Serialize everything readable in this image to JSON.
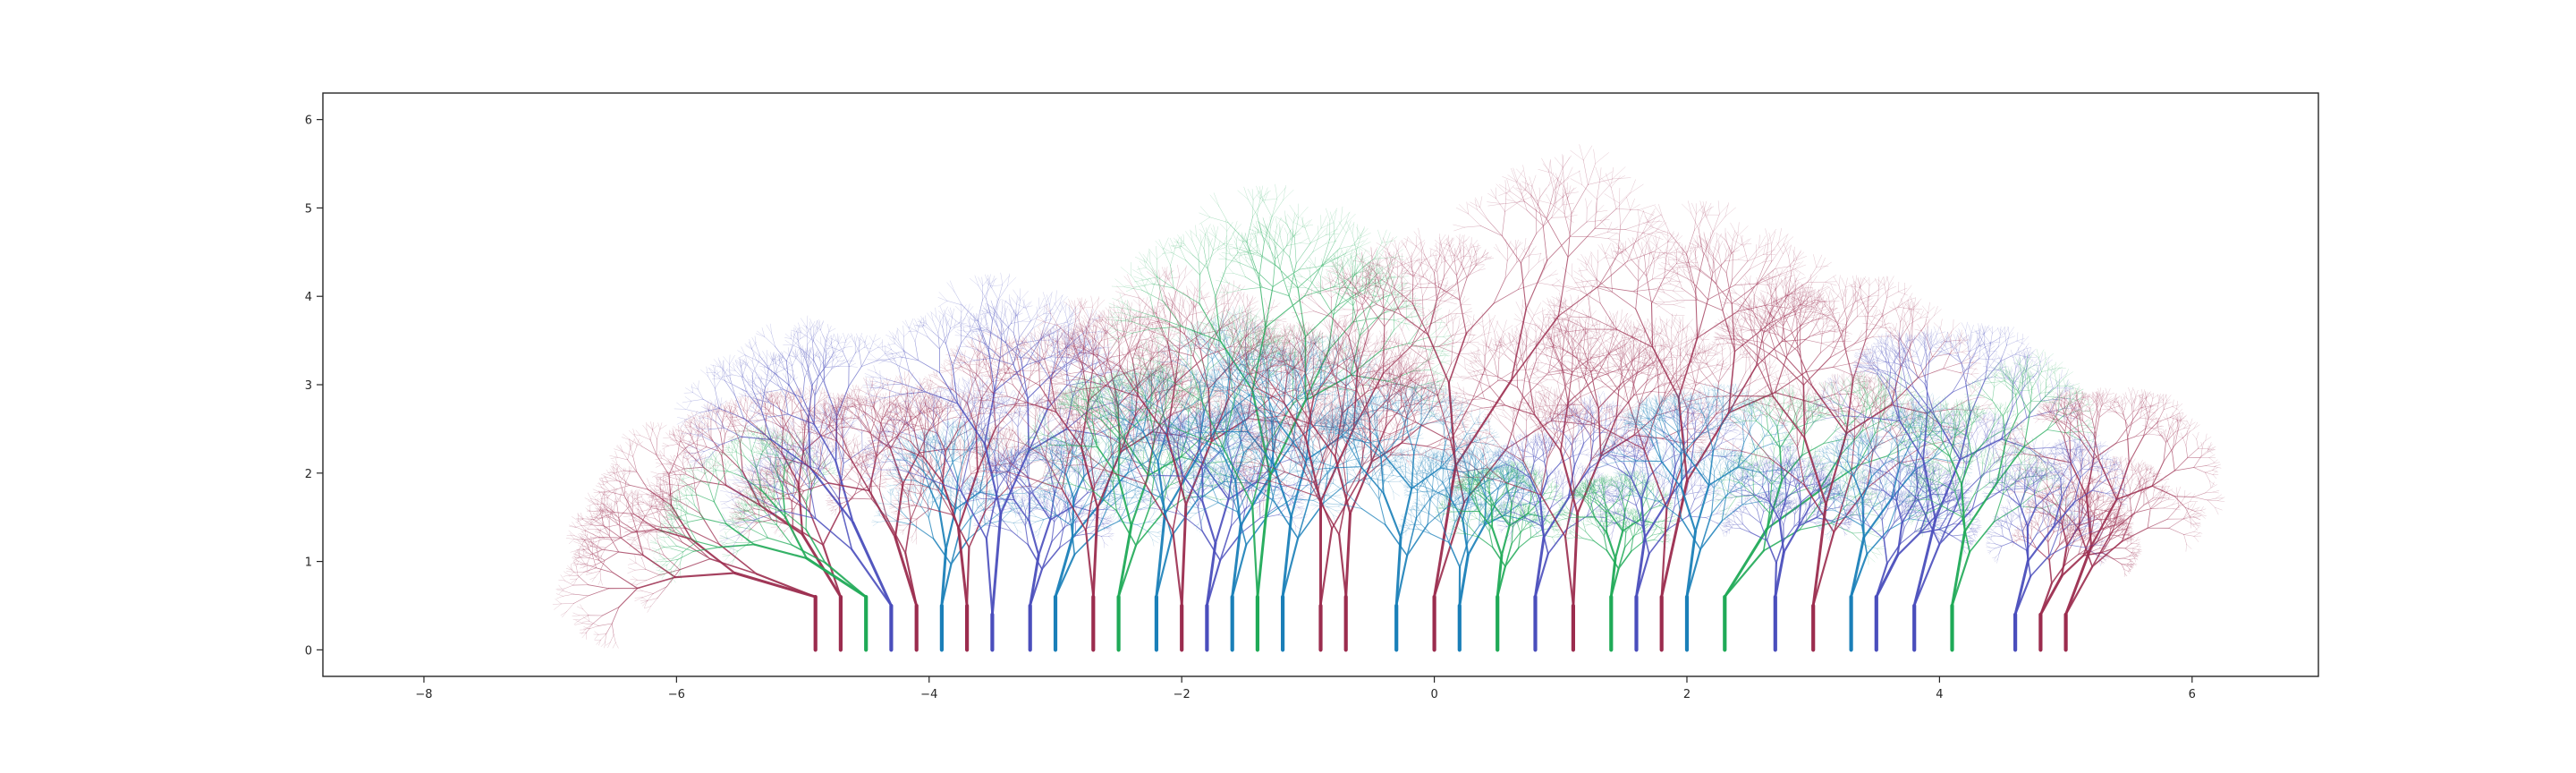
{
  "chart_data": {
    "type": "tree-plot",
    "title": "",
    "xlabel": "",
    "ylabel": "",
    "xlim": [
      -8.8,
      7.0
    ],
    "ylim": [
      -0.3,
      6.3
    ],
    "grid": false,
    "legend": "none",
    "xticks": [
      -8,
      -6,
      -4,
      -2,
      0,
      2,
      4,
      6
    ],
    "xtick_labels": [
      "−8",
      "−6",
      "−4",
      "−2",
      "0",
      "2",
      "4",
      "6"
    ],
    "yticks": [
      0,
      1,
      2,
      3,
      4,
      5,
      6
    ],
    "ytick_labels": [
      "0",
      "1",
      "2",
      "3",
      "4",
      "5",
      "6"
    ],
    "palette": {
      "crimson": "#9b2c4e",
      "green": "#1faa57",
      "indigo": "#4a4ebc",
      "teal": "#1a7fb8"
    },
    "trees": [
      {
        "x": -4.9,
        "color": "crimson",
        "trunk": 0.6,
        "crown_x": -6.8,
        "crown_y": 1.4,
        "spread": 1.6,
        "height": 2.4
      },
      {
        "x": -4.7,
        "color": "crimson",
        "trunk": 0.6,
        "crown_x": -5.6,
        "crown_y": 2.7,
        "spread": 1.4,
        "height": 2.6
      },
      {
        "x": -4.5,
        "color": "green",
        "trunk": 0.6,
        "crown_x": -5.9,
        "crown_y": 1.9,
        "spread": 1.0,
        "height": 1.5
      },
      {
        "x": -4.3,
        "color": "indigo",
        "trunk": 0.5,
        "crown_x": -5.2,
        "crown_y": 3.3,
        "spread": 1.2,
        "height": 1.8
      },
      {
        "x": -4.1,
        "color": "crimson",
        "trunk": 0.5,
        "crown_x": -4.6,
        "crown_y": 2.8,
        "spread": 1.2,
        "height": 2.0
      },
      {
        "x": -3.9,
        "color": "teal",
        "trunk": 0.5,
        "crown_x": -3.8,
        "crown_y": 2.4,
        "spread": 1.4,
        "height": 2.4
      },
      {
        "x": -3.7,
        "color": "crimson",
        "trunk": 0.5,
        "crown_x": -3.9,
        "crown_y": 3.1,
        "spread": 1.0,
        "height": 1.7
      },
      {
        "x": -3.5,
        "color": "indigo",
        "trunk": 0.4,
        "crown_x": -3.3,
        "crown_y": 3.8,
        "spread": 1.0,
        "height": 1.8
      },
      {
        "x": -3.2,
        "color": "indigo",
        "trunk": 0.5,
        "crown_x": -3.0,
        "crown_y": 2.2,
        "spread": 1.2,
        "height": 2.0
      },
      {
        "x": -3.0,
        "color": "teal",
        "trunk": 0.6,
        "crown_x": -2.6,
        "crown_y": 2.6,
        "spread": 1.6,
        "height": 2.6
      },
      {
        "x": -2.7,
        "color": "crimson",
        "trunk": 0.6,
        "crown_x": -2.6,
        "crown_y": 3.6,
        "spread": 1.0,
        "height": 1.8
      },
      {
        "x": -2.5,
        "color": "green",
        "trunk": 0.6,
        "crown_x": -2.2,
        "crown_y": 3.0,
        "spread": 1.4,
        "height": 2.4
      },
      {
        "x": -2.2,
        "color": "teal",
        "trunk": 0.6,
        "crown_x": -2.0,
        "crown_y": 3.4,
        "spread": 1.4,
        "height": 2.4
      },
      {
        "x": -2.0,
        "color": "crimson",
        "trunk": 0.5,
        "crown_x": -1.9,
        "crown_y": 3.9,
        "spread": 1.0,
        "height": 1.9
      },
      {
        "x": -1.8,
        "color": "indigo",
        "trunk": 0.5,
        "crown_x": -1.6,
        "crown_y": 2.6,
        "spread": 1.2,
        "height": 2.0
      },
      {
        "x": -1.6,
        "color": "teal",
        "trunk": 0.6,
        "crown_x": -1.4,
        "crown_y": 3.0,
        "spread": 1.4,
        "height": 2.6
      },
      {
        "x": -1.4,
        "color": "green",
        "trunk": 0.6,
        "crown_x": -1.1,
        "crown_y": 4.7,
        "spread": 0.8,
        "height": 1.8
      },
      {
        "x": -1.2,
        "color": "teal",
        "trunk": 0.6,
        "crown_x": -1.0,
        "crown_y": 3.3,
        "spread": 1.4,
        "height": 2.2
      },
      {
        "x": -0.9,
        "color": "crimson",
        "trunk": 0.5,
        "crown_x": -0.9,
        "crown_y": 4.0,
        "spread": 0.9,
        "height": 1.6
      },
      {
        "x": -0.7,
        "color": "crimson",
        "trunk": 0.6,
        "crown_x": -0.6,
        "crown_y": 3.4,
        "spread": 1.0,
        "height": 1.8
      },
      {
        "x": -0.3,
        "color": "teal",
        "trunk": 0.5,
        "crown_x": -0.2,
        "crown_y": 2.8,
        "spread": 1.4,
        "height": 2.2
      },
      {
        "x": 0.0,
        "color": "crimson",
        "trunk": 0.6,
        "crown_x": 0.5,
        "crown_y": 5.0,
        "spread": 1.0,
        "height": 1.8
      },
      {
        "x": 0.2,
        "color": "teal",
        "trunk": 0.5,
        "crown_x": 0.4,
        "crown_y": 2.2,
        "spread": 1.2,
        "height": 1.9
      },
      {
        "x": 0.5,
        "color": "green",
        "trunk": 0.6,
        "crown_x": 0.6,
        "crown_y": 2.0,
        "spread": 1.0,
        "height": 1.6
      },
      {
        "x": 0.8,
        "color": "indigo",
        "trunk": 0.6,
        "crown_x": 1.0,
        "crown_y": 2.6,
        "spread": 1.2,
        "height": 2.0
      },
      {
        "x": 1.1,
        "color": "crimson",
        "trunk": 0.5,
        "crown_x": 1.2,
        "crown_y": 3.6,
        "spread": 1.0,
        "height": 1.8
      },
      {
        "x": 1.4,
        "color": "green",
        "trunk": 0.6,
        "crown_x": 1.5,
        "crown_y": 1.9,
        "spread": 0.9,
        "height": 1.4
      },
      {
        "x": 1.6,
        "color": "indigo",
        "trunk": 0.6,
        "crown_x": 1.8,
        "crown_y": 2.6,
        "spread": 1.2,
        "height": 2.0
      },
      {
        "x": 1.8,
        "color": "crimson",
        "trunk": 0.6,
        "crown_x": 2.4,
        "crown_y": 4.5,
        "spread": 1.4,
        "height": 2.0
      },
      {
        "x": 2.0,
        "color": "teal",
        "trunk": 0.6,
        "crown_x": 2.2,
        "crown_y": 2.8,
        "spread": 1.4,
        "height": 2.2
      },
      {
        "x": 2.3,
        "color": "green",
        "trunk": 0.6,
        "crown_x": 3.3,
        "crown_y": 2.9,
        "spread": 1.6,
        "height": 2.6
      },
      {
        "x": 2.7,
        "color": "indigo",
        "trunk": 0.6,
        "crown_x": 2.9,
        "crown_y": 2.1,
        "spread": 1.4,
        "height": 2.0
      },
      {
        "x": 3.0,
        "color": "crimson",
        "trunk": 0.5,
        "crown_x": 3.3,
        "crown_y": 3.9,
        "spread": 1.2,
        "height": 1.9
      },
      {
        "x": 3.3,
        "color": "teal",
        "trunk": 0.6,
        "crown_x": 3.6,
        "crown_y": 2.6,
        "spread": 1.4,
        "height": 2.2
      },
      {
        "x": 3.5,
        "color": "indigo",
        "trunk": 0.6,
        "crown_x": 4.0,
        "crown_y": 2.0,
        "spread": 1.4,
        "height": 2.0
      },
      {
        "x": 3.8,
        "color": "indigo",
        "trunk": 0.5,
        "crown_x": 4.3,
        "crown_y": 3.4,
        "spread": 1.2,
        "height": 1.8
      },
      {
        "x": 4.1,
        "color": "green",
        "trunk": 0.5,
        "crown_x": 4.4,
        "crown_y": 3.0,
        "spread": 1.2,
        "height": 1.9
      },
      {
        "x": 4.8,
        "color": "crimson",
        "trunk": 0.4,
        "crown_x": 5.3,
        "crown_y": 1.7,
        "spread": 1.2,
        "height": 1.9
      },
      {
        "x": 5.0,
        "color": "crimson",
        "trunk": 0.4,
        "crown_x": 5.6,
        "crown_y": 2.7,
        "spread": 0.9,
        "height": 1.4
      },
      {
        "x": 4.6,
        "color": "indigo",
        "trunk": 0.4,
        "crown_x": 4.9,
        "crown_y": 2.2,
        "spread": 1.0,
        "height": 1.6
      }
    ]
  }
}
